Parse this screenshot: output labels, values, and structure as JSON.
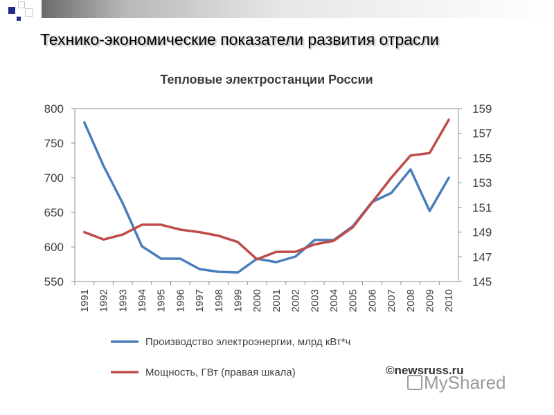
{
  "slide": {
    "title": "Технико-экономические показатели развития отрасли"
  },
  "chart_data": {
    "type": "line",
    "title": "Тепловые электростанции России",
    "categories": [
      "1991",
      "1992",
      "1993",
      "1994",
      "1995",
      "1996",
      "1997",
      "1998",
      "1999",
      "2000",
      "2001",
      "2002",
      "2003",
      "2004",
      "2005",
      "2006",
      "2007",
      "2008",
      "2009",
      "2010"
    ],
    "y_left": {
      "min": 550,
      "max": 800,
      "ticks": [
        550,
        600,
        650,
        700,
        750,
        800
      ]
    },
    "y_right": {
      "min": 145,
      "max": 159,
      "ticks": [
        145,
        147,
        149,
        151,
        153,
        155,
        157,
        159
      ]
    },
    "series": [
      {
        "name": "Производство электроэнергии, млрд кВт*ч",
        "axis": "left",
        "color": "#4a7ebb",
        "values": [
          780,
          717,
          663,
          601,
          583,
          583,
          568,
          564,
          563,
          583,
          578,
          586,
          610,
          610,
          630,
          665,
          678,
          712,
          652,
          700
        ]
      },
      {
        "name": "Мощность, ГВт (правая шкала)",
        "axis": "right",
        "color": "#be4b48",
        "values": [
          149.0,
          148.4,
          148.8,
          149.6,
          149.6,
          149.2,
          149.0,
          148.7,
          148.2,
          146.8,
          147.4,
          147.4,
          148.0,
          148.3,
          149.4,
          151.4,
          153.4,
          155.2,
          155.4,
          158.1
        ]
      }
    ],
    "grid": false,
    "legend_position": "bottom",
    "source": "©newsruss.ru"
  },
  "watermark": {
    "text": "MyShared",
    "icon": "presentation-board-icon"
  }
}
